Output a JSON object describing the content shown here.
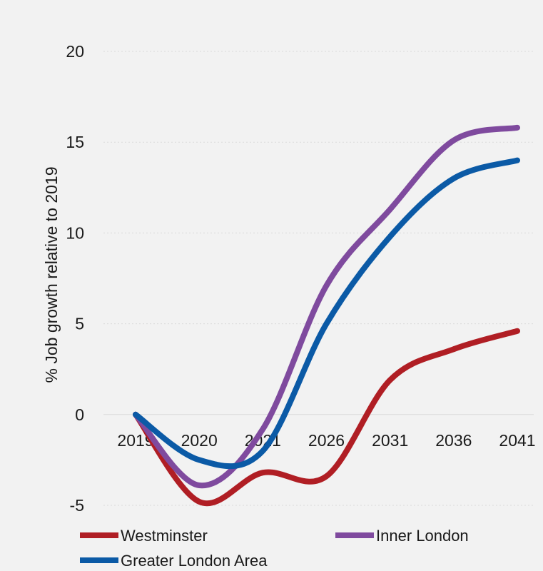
{
  "chart_data": {
    "type": "line",
    "categories": [
      "2019",
      "2020",
      "2021",
      "2026",
      "2031",
      "2036",
      "2041"
    ],
    "ylabel": "% Job growth relative to 2019",
    "xlabel": "",
    "title": "",
    "ylim": [
      -5,
      20
    ],
    "yticks": [
      -5,
      0,
      5,
      10,
      15,
      20
    ],
    "grid": true,
    "legend_position": "bottom",
    "series": [
      {
        "name": "Westminster",
        "color": "#b01e24",
        "values": [
          0,
          -4.8,
          -3.2,
          -3.4,
          1.9,
          3.6,
          4.6
        ]
      },
      {
        "name": "Inner London",
        "color": "#7f4a9e",
        "values": [
          0,
          -3.9,
          -0.8,
          7.1,
          11.3,
          15.1,
          15.8
        ]
      },
      {
        "name": "Greater London Area",
        "color": "#0b5aa6",
        "values": [
          0,
          -2.5,
          -2.0,
          5.0,
          9.8,
          13.0,
          14.0
        ]
      }
    ]
  }
}
